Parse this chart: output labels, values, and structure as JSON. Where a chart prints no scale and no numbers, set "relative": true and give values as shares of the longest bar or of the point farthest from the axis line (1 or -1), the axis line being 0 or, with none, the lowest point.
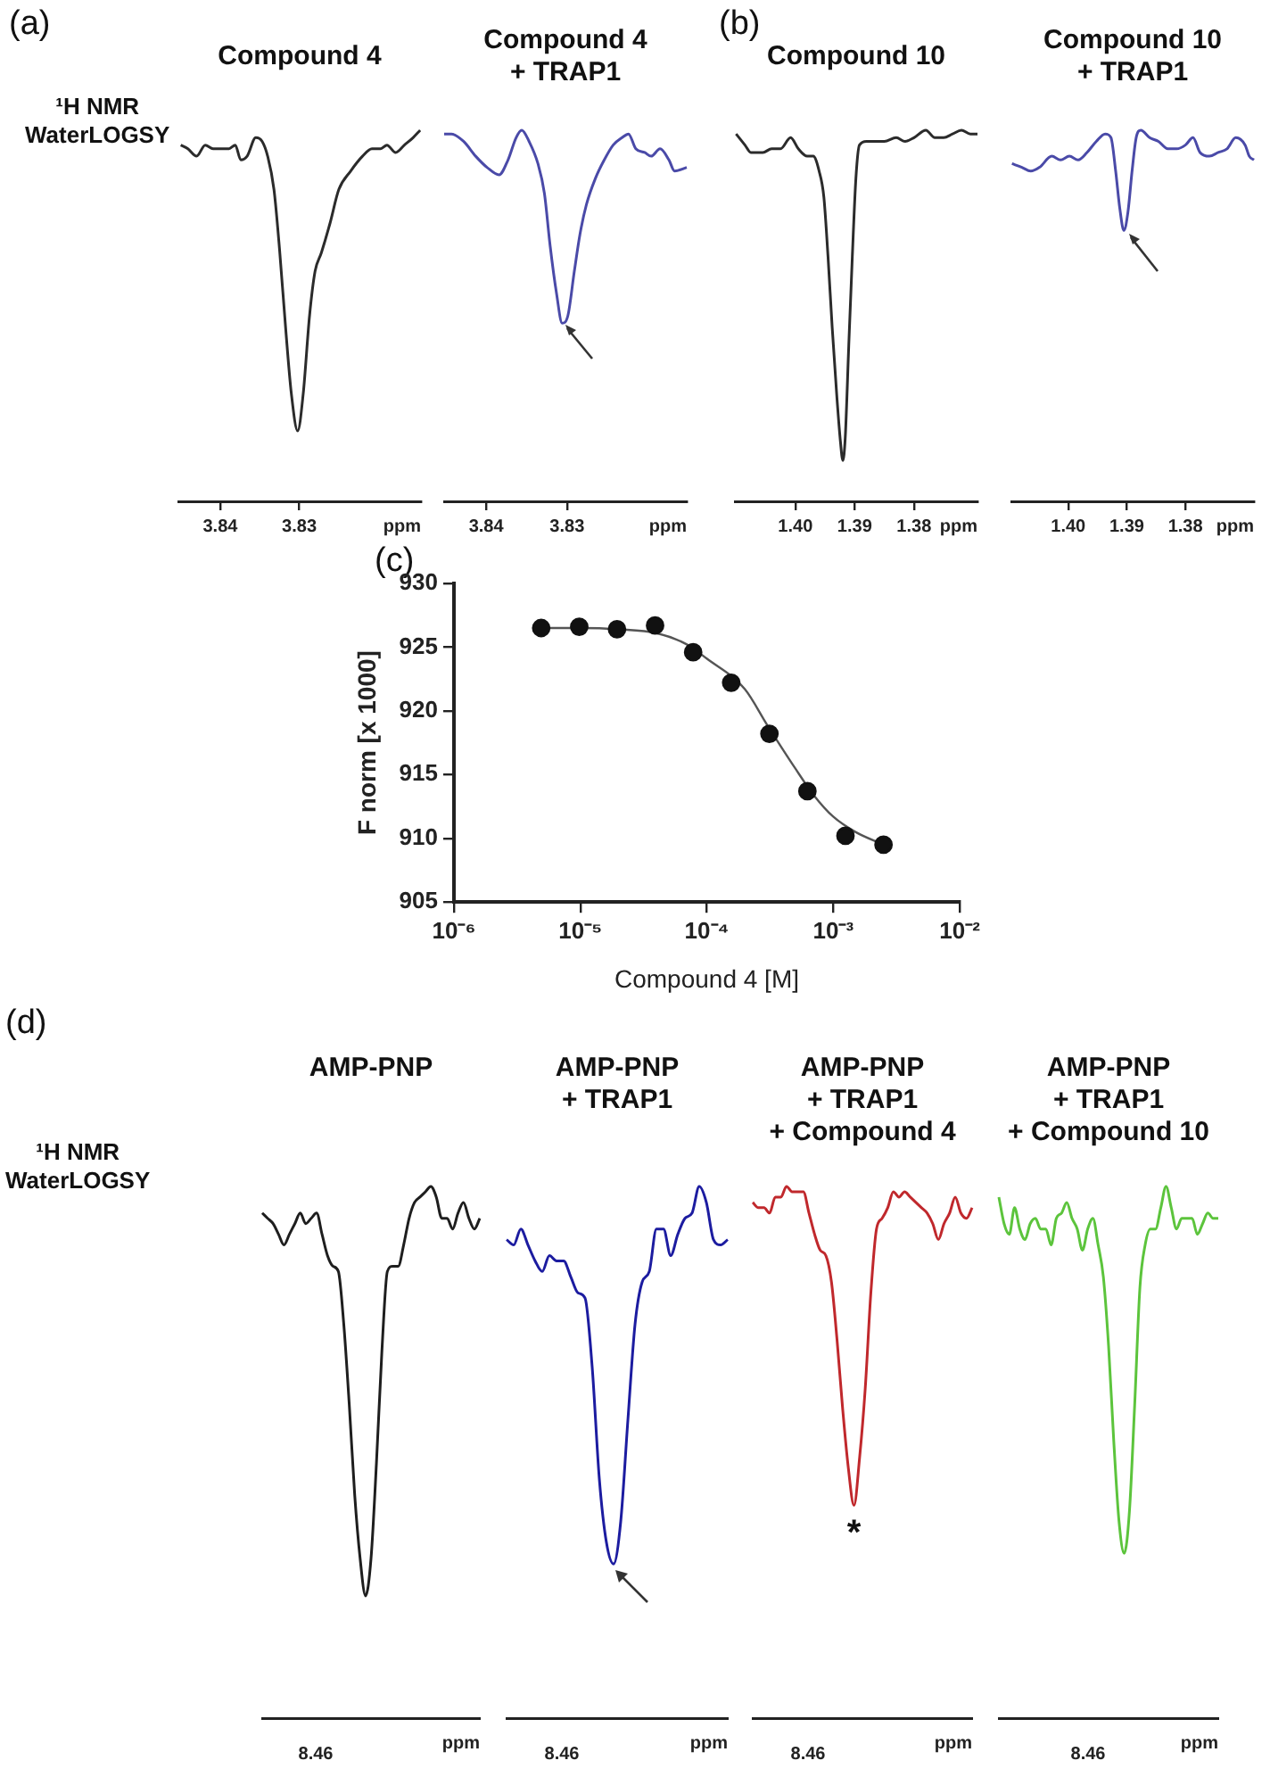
{
  "chart_data": [
    {
      "type": "line",
      "title": "Compound 4",
      "xlabel": "ppm",
      "relative": true,
      "xlim": [
        3.8453,
        3.8146
      ],
      "xticks": [
        3.84,
        3.83
      ],
      "annotations": [
        "(a)",
        "¹H NMR\nWaterLOGSY"
      ],
      "x": [
        3.845,
        3.8441,
        3.843,
        3.8419,
        3.8409,
        3.8398,
        3.8389,
        3.8381,
        3.8374,
        3.8366,
        3.8355,
        3.8347,
        3.834,
        3.8332,
        3.8325,
        3.8317,
        3.831,
        3.8302,
        3.8295,
        3.8287,
        3.828,
        3.8272,
        3.8261,
        3.825,
        3.8235,
        3.822,
        3.8208,
        3.8197,
        3.8189,
        3.8178,
        3.8167,
        3.8156,
        3.8147
      ],
      "series": [
        {
          "color": "#2b2b2b",
          "values": [
            0.96,
            0.95,
            0.93,
            0.96,
            0.95,
            0.95,
            0.95,
            0.96,
            0.92,
            0.93,
            0.98,
            0.97,
            0.93,
            0.84,
            0.68,
            0.46,
            0.29,
            0.19,
            0.29,
            0.5,
            0.62,
            0.67,
            0.75,
            0.84,
            0.89,
            0.93,
            0.95,
            0.95,
            0.96,
            0.94,
            0.96,
            0.98,
            1
          ]
        }
      ]
    },
    {
      "type": "line",
      "title": "Compound 4\n+ TRAP1",
      "xlabel": "ppm",
      "relative": true,
      "xlim": [
        3.8452,
        3.8152
      ],
      "xticks": [
        3.84,
        3.83
      ],
      "x": [
        3.8452,
        3.8443,
        3.8428,
        3.8413,
        3.8399,
        3.8384,
        3.8373,
        3.8363,
        3.8356,
        3.8347,
        3.8336,
        3.8328,
        3.8321,
        3.8313,
        3.8306,
        3.8299,
        3.8291,
        3.8284,
        3.8276,
        3.8265,
        3.8254,
        3.8243,
        3.8232,
        3.8224,
        3.8215,
        3.8204,
        3.8196,
        3.8185,
        3.8174,
        3.8167,
        3.8152
      ],
      "series": [
        {
          "color": "#4a4aa8",
          "values": [
            0.99,
            0.99,
            0.97,
            0.93,
            0.9,
            0.88,
            0.92,
            0.98,
            1,
            0.97,
            0.91,
            0.83,
            0.69,
            0.56,
            0.48,
            0.5,
            0.62,
            0.72,
            0.8,
            0.87,
            0.92,
            0.96,
            0.98,
            0.99,
            0.95,
            0.94,
            0.93,
            0.95,
            0.92,
            0.89,
            0.9
          ]
        }
      ]
    },
    {
      "type": "line",
      "title": "Compound 10",
      "xlabel": "ppm",
      "relative": true,
      "xlim": [
        1.4102,
        1.3693
      ],
      "xticks": [
        {
          "value": 1.4,
          "label": "1.40"
        },
        1.39,
        1.38
      ],
      "annotations": [
        "(b)"
      ],
      "x": [
        1.41,
        1.4085,
        1.4075,
        1.4055,
        1.404,
        1.4025,
        1.4008,
        1.3995,
        1.398,
        1.397,
        1.396,
        1.3952,
        1.3945,
        1.3938,
        1.393,
        1.3924,
        1.392,
        1.3916,
        1.391,
        1.3904,
        1.3898,
        1.3892,
        1.388,
        1.3865,
        1.385,
        1.383,
        1.3815,
        1.38,
        1.378,
        1.3765,
        1.375,
        1.3735,
        1.372,
        1.3705,
        1.3693
      ],
      "series": [
        {
          "color": "#2b2b2b",
          "values": [
            0.99,
            0.96,
            0.94,
            0.94,
            0.95,
            0.95,
            0.98,
            0.95,
            0.93,
            0.93,
            0.89,
            0.82,
            0.66,
            0.47,
            0.28,
            0.16,
            0.11,
            0.17,
            0.42,
            0.66,
            0.87,
            0.96,
            0.97,
            0.97,
            0.97,
            0.98,
            0.97,
            0.98,
            1,
            0.98,
            0.98,
            0.99,
            1,
            0.99,
            0.99
          ]
        }
      ]
    },
    {
      "type": "line",
      "title": "Compound 10\n+ TRAP1",
      "xlabel": "ppm",
      "relative": true,
      "xlim": [
        1.4097,
        1.3683
      ],
      "xticks": [
        {
          "value": 1.4,
          "label": "1.40"
        },
        1.39,
        1.38
      ],
      "x": [
        1.4096,
        1.4079,
        1.4064,
        1.4049,
        1.4028,
        1.4013,
        1.3998,
        1.3983,
        1.3968,
        1.3952,
        1.3937,
        1.3927,
        1.3919,
        1.3912,
        1.3905,
        1.3898,
        1.3891,
        1.3884,
        1.3876,
        1.3861,
        1.3846,
        1.383,
        1.3815,
        1.38,
        1.3787,
        1.3775,
        1.3759,
        1.3744,
        1.3729,
        1.3714,
        1.3698,
        1.3691,
        1.3683
      ],
      "series": [
        {
          "color": "#4a4aa8",
          "values": [
            0.91,
            0.9,
            0.89,
            0.9,
            0.93,
            0.92,
            0.93,
            0.92,
            0.94,
            0.97,
            0.99,
            0.98,
            0.89,
            0.79,
            0.73,
            0.78,
            0.89,
            0.98,
            1,
            0.98,
            0.97,
            0.95,
            0.95,
            0.96,
            0.98,
            0.94,
            0.93,
            0.94,
            0.95,
            0.98,
            0.96,
            0.93,
            0.92
          ]
        }
      ]
    },
    {
      "type": "scatter",
      "xlabel": "Compound 4 [M]",
      "ylabel": "F norm [x 1000]",
      "log": "x",
      "annotations": [
        "(c)"
      ],
      "xlim": [
        1e-06,
        0.01
      ],
      "xticks": [
        {
          "value": 1e-06,
          "label": "10⁻⁶"
        },
        {
          "value": 1e-05,
          "label": "10⁻⁵"
        },
        {
          "value": 0.0001,
          "label": "10⁻⁴"
        },
        {
          "value": 0.001,
          "label": "10⁻³"
        },
        {
          "value": 0.01,
          "label": "10⁻²"
        }
      ],
      "ylim": [
        905,
        930
      ],
      "yticks": [
        905,
        910,
        915,
        920,
        925,
        930
      ],
      "series": [
        {
          "type": "scatter",
          "marker": "circle",
          "color": "#111111",
          "x": [
            4.9e-06,
            9.8e-06,
            1.95e-05,
            3.9e-05,
            7.8e-05,
            0.000156,
            0.000313,
            0.000625,
            0.00125,
            0.0025
          ],
          "values": [
            926.5,
            926.6,
            926.4,
            926.7,
            924.6,
            922.2,
            918.2,
            913.7,
            910.2,
            909.5
          ]
        },
        {
          "type": "line",
          "color": "#555555",
          "x": [
            5e-06,
            1e-05,
            2e-05,
            4e-05,
            7e-05,
            0.0001,
            0.0002,
            0.0003,
            0.0005,
            0.0007,
            0.001,
            0.0015,
            0.0025
          ],
          "values": [
            926.5,
            926.5,
            926.4,
            926.1,
            925.2,
            924.1,
            921.7,
            918.9,
            915.5,
            913.4,
            911.7,
            910.5,
            909.5
          ]
        }
      ]
    },
    {
      "type": "line",
      "title": "AMP-PNP",
      "xlabel": "ppm",
      "relative": true,
      "annotations": [
        "(d)",
        "¹H NMR\nWaterLOGSY",
        "8.46"
      ],
      "categories": [
        null,
        null,
        null,
        null,
        null,
        null,
        null,
        null,
        null,
        null,
        null,
        null,
        null,
        null,
        null,
        null,
        null,
        null,
        null,
        null,
        null,
        null,
        null,
        null,
        null,
        null,
        null,
        null,
        null,
        null,
        null,
        null,
        null,
        null,
        null,
        null,
        null,
        null,
        null,
        null,
        null
      ],
      "series": [
        {
          "color": "#1e1e1e",
          "values": [
            0.95,
            0.94,
            0.93,
            0.91,
            0.89,
            0.91,
            0.93,
            0.95,
            0.93,
            0.94,
            0.95,
            0.91,
            0.87,
            0.85,
            0.84,
            0.74,
            0.59,
            0.42,
            0.3,
            0.23,
            0.3,
            0.48,
            0.69,
            0.84,
            0.85,
            0.85,
            0.89,
            0.94,
            0.97,
            0.98,
            0.99,
            1,
            0.98,
            0.94,
            0.94,
            0.92,
            0.95,
            0.97,
            0.94,
            0.92,
            0.94
          ]
        }
      ]
    },
    {
      "type": "line",
      "title": "AMP-PNP\n+ TRAP1",
      "xlabel": "ppm",
      "relative": true,
      "annotations": [
        "8.46"
      ],
      "categories": [
        null,
        null,
        null,
        null,
        null,
        null,
        null,
        null,
        null,
        null,
        null,
        null,
        null,
        null,
        null,
        null,
        null,
        null,
        null,
        null,
        null,
        null,
        null,
        null,
        null,
        null,
        null,
        null,
        null,
        null,
        null,
        null
      ],
      "series": [
        {
          "color": "#1c1ca0",
          "values": [
            0.9,
            0.89,
            0.92,
            0.89,
            0.86,
            0.84,
            0.87,
            0.86,
            0.86,
            0.83,
            0.8,
            0.79,
            0.66,
            0.45,
            0.33,
            0.29,
            0.37,
            0.56,
            0.74,
            0.82,
            0.84,
            0.92,
            0.92,
            0.87,
            0.91,
            0.94,
            0.95,
            1,
            0.97,
            0.9,
            0.89,
            0.9
          ]
        }
      ]
    },
    {
      "type": "line",
      "title": "AMP-PNP\n+ TRAP1\n+ Compound 4",
      "xlabel": "ppm",
      "relative": true,
      "annotations": [
        {
          "text": "*",
          "y": 0.4
        },
        "8.46"
      ],
      "categories": [
        null,
        null,
        null,
        null,
        null,
        null,
        null,
        null,
        null,
        null,
        null,
        null,
        null,
        null,
        null,
        null,
        null,
        null,
        null,
        null,
        null,
        null,
        null,
        null,
        null,
        null,
        null,
        null,
        null,
        null,
        null,
        null,
        null,
        null,
        null,
        null,
        null,
        null,
        null,
        null
      ],
      "series": [
        {
          "color": "#c0282c",
          "values": [
            0.97,
            0.96,
            0.96,
            0.95,
            0.98,
            0.98,
            1,
            0.99,
            0.99,
            0.99,
            0.95,
            0.91,
            0.88,
            0.87,
            0.82,
            0.71,
            0.58,
            0.47,
            0.4,
            0.49,
            0.62,
            0.8,
            0.92,
            0.94,
            0.96,
            0.99,
            0.98,
            0.99,
            0.98,
            0.97,
            0.96,
            0.95,
            0.93,
            0.9,
            0.93,
            0.95,
            0.98,
            0.95,
            0.94,
            0.96
          ]
        }
      ]
    },
    {
      "type": "line",
      "title": "AMP-PNP\n+ TRAP1\n+ Compound 10",
      "xlabel": "ppm",
      "relative": true,
      "annotations": [
        "8.46"
      ],
      "categories": [
        null,
        null,
        null,
        null,
        null,
        null,
        null,
        null,
        null,
        null,
        null,
        null,
        null,
        null,
        null,
        null,
        null,
        null,
        null,
        null,
        null,
        null,
        null,
        null,
        null,
        null,
        null,
        null,
        null,
        null,
        null,
        null,
        null,
        null,
        null,
        null,
        null,
        null,
        null,
        null,
        null,
        null,
        null
      ],
      "series": [
        {
          "color": "#5cc43c",
          "values": [
            0.98,
            0.93,
            0.91,
            0.96,
            0.92,
            0.9,
            0.93,
            0.94,
            0.92,
            0.92,
            0.89,
            0.94,
            0.95,
            0.97,
            0.94,
            0.92,
            0.88,
            0.92,
            0.94,
            0.89,
            0.83,
            0.7,
            0.52,
            0.37,
            0.31,
            0.39,
            0.59,
            0.81,
            0.89,
            0.92,
            0.92,
            0.96,
            1,
            0.96,
            0.92,
            0.94,
            0.94,
            0.94,
            0.91,
            0.93,
            0.95,
            0.94,
            0.94
          ]
        }
      ]
    }
  ]
}
